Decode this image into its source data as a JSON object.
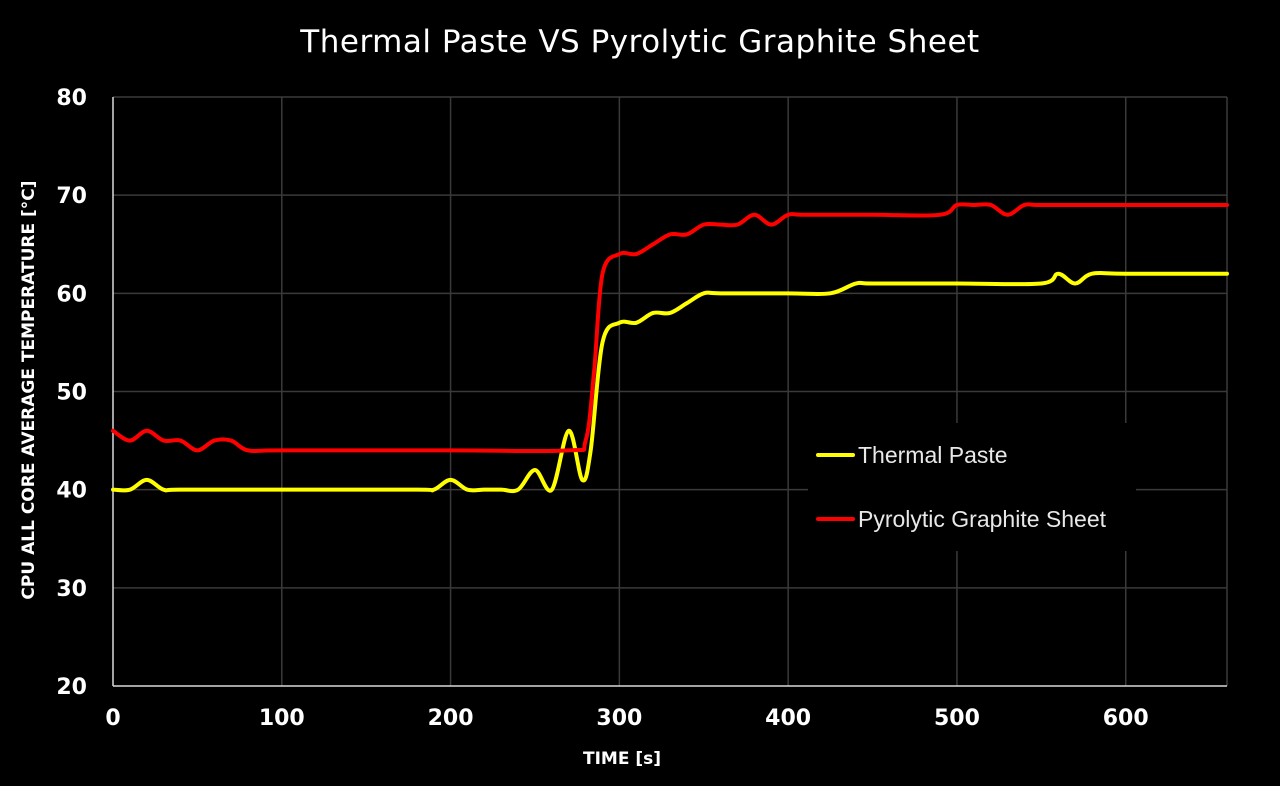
{
  "chart_data": {
    "type": "line",
    "title": "Thermal Paste VS Pyrolytic Graphite Sheet",
    "xlabel": "TIME [s]",
    "ylabel": "CPU  ALL  CORE  AVERAGE  TEMPERATURE   [°C]",
    "xlim": [
      0,
      660
    ],
    "ylim": [
      20,
      80
    ],
    "x_ticks": [
      0,
      100,
      200,
      300,
      400,
      500,
      600
    ],
    "x_tick_labels": [
      "0",
      "100",
      "200",
      "300",
      "400",
      "500",
      "600"
    ],
    "y_ticks": [
      20,
      30,
      40,
      50,
      60,
      70,
      80
    ],
    "y_tick_labels": [
      "20",
      "30",
      "40",
      "50",
      "60",
      "70",
      "80"
    ],
    "grid": true,
    "legend_position": "center-right",
    "series": [
      {
        "name": "Thermal Paste",
        "color": "#ffff00",
        "points": [
          [
            0,
            40
          ],
          [
            10,
            40
          ],
          [
            20,
            41
          ],
          [
            30,
            40
          ],
          [
            40,
            40
          ],
          [
            100,
            40
          ],
          [
            180,
            40
          ],
          [
            190,
            40
          ],
          [
            200,
            41
          ],
          [
            210,
            40
          ],
          [
            220,
            40
          ],
          [
            230,
            40
          ],
          [
            240,
            40
          ],
          [
            250,
            42
          ],
          [
            260,
            40
          ],
          [
            270,
            46
          ],
          [
            278,
            41
          ],
          [
            283,
            44
          ],
          [
            290,
            55
          ],
          [
            300,
            57
          ],
          [
            310,
            57
          ],
          [
            320,
            58
          ],
          [
            330,
            58
          ],
          [
            340,
            59
          ],
          [
            350,
            60
          ],
          [
            360,
            60
          ],
          [
            400,
            60
          ],
          [
            425,
            60
          ],
          [
            440,
            61
          ],
          [
            450,
            61
          ],
          [
            500,
            61
          ],
          [
            550,
            61
          ],
          [
            560,
            62
          ],
          [
            570,
            61
          ],
          [
            580,
            62
          ],
          [
            600,
            62
          ],
          [
            660,
            62
          ]
        ]
      },
      {
        "name": "Pyrolytic Graphite Sheet",
        "color": "#ff0000",
        "points": [
          [
            0,
            46
          ],
          [
            10,
            45
          ],
          [
            20,
            46
          ],
          [
            30,
            45
          ],
          [
            40,
            45
          ],
          [
            50,
            44
          ],
          [
            60,
            45
          ],
          [
            70,
            45
          ],
          [
            80,
            44
          ],
          [
            100,
            44
          ],
          [
            200,
            44
          ],
          [
            270,
            44
          ],
          [
            280,
            45
          ],
          [
            285,
            52
          ],
          [
            290,
            62
          ],
          [
            300,
            64
          ],
          [
            310,
            64
          ],
          [
            320,
            65
          ],
          [
            330,
            66
          ],
          [
            340,
            66
          ],
          [
            350,
            67
          ],
          [
            360,
            67
          ],
          [
            370,
            67
          ],
          [
            380,
            68
          ],
          [
            390,
            67
          ],
          [
            400,
            68
          ],
          [
            410,
            68
          ],
          [
            450,
            68
          ],
          [
            490,
            68
          ],
          [
            500,
            69
          ],
          [
            510,
            69
          ],
          [
            520,
            69
          ],
          [
            530,
            68
          ],
          [
            540,
            69
          ],
          [
            550,
            69
          ],
          [
            600,
            69
          ],
          [
            660,
            69
          ]
        ]
      }
    ]
  }
}
